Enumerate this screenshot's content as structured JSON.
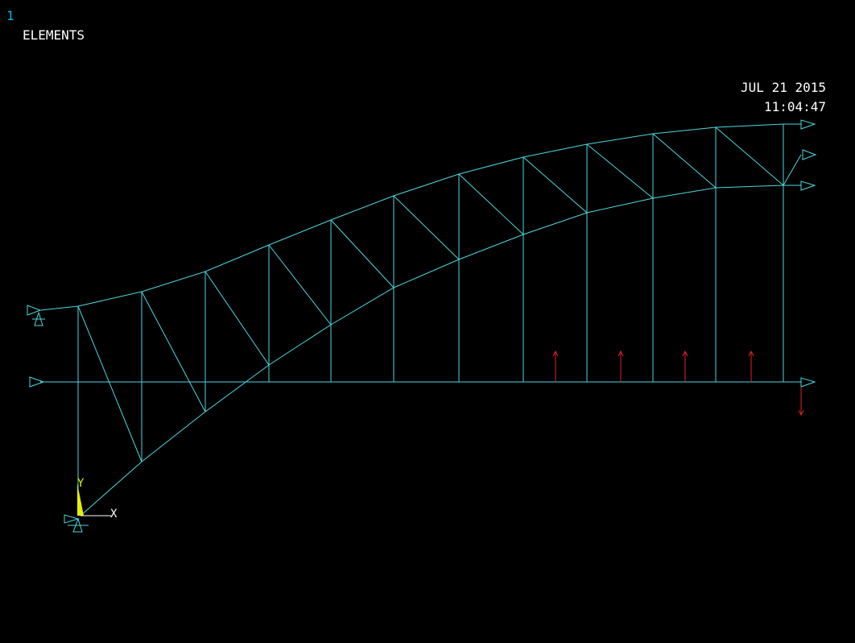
{
  "window_number": "1",
  "plot_title": "ELEMENTS",
  "date": "JUL 21 2015",
  "time": "11:04:47",
  "triad": {
    "x_label": "X",
    "y_label": "Y"
  },
  "colors": {
    "background": "#000000",
    "elements": "#4cd9e0",
    "loads": "#e02020",
    "text": "#ffffff",
    "window_number": "#00b8e0",
    "triad_y": "#e8f000",
    "triad_x": "#ffffff"
  }
}
